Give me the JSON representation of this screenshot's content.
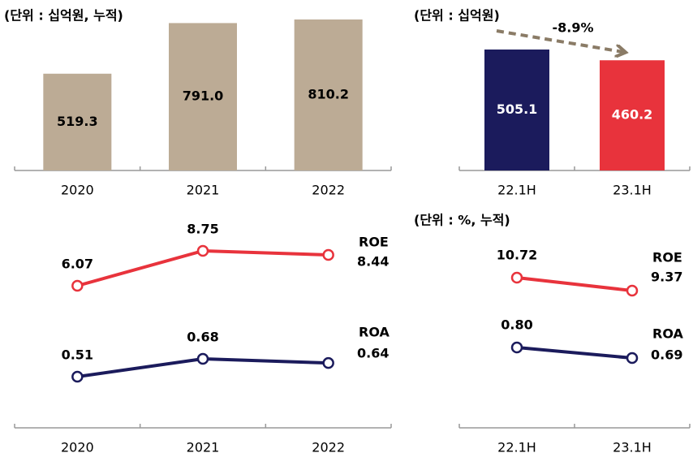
{
  "chart_data": [
    {
      "type": "bar",
      "title": "(단위 : 십억원, 누적)",
      "categories": [
        "2020",
        "2021",
        "2022"
      ],
      "values": [
        519.3,
        791.0,
        810.2
      ],
      "value_labels": [
        "519.3",
        "791.0",
        "810.2"
      ],
      "color": "#bcab95"
    },
    {
      "type": "bar",
      "title": "(단위 : 십억원)",
      "categories": [
        "22.1H",
        "23.1H"
      ],
      "values": [
        505.1,
        460.2
      ],
      "colors": [
        "#1b1b5c",
        "#e8333c"
      ],
      "annotation": "-8.9%"
    },
    {
      "type": "line",
      "categories": [
        "2020",
        "2021",
        "2022"
      ],
      "series": [
        {
          "name": "ROE",
          "color": "#e8333c",
          "values": [
            6.07,
            8.75,
            8.44
          ]
        },
        {
          "name": "ROA",
          "color": "#1b1b5c",
          "values": [
            0.51,
            0.68,
            0.64
          ]
        }
      ]
    },
    {
      "type": "line",
      "title": "(단위 : %, 누적)",
      "categories": [
        "22.1H",
        "23.1H"
      ],
      "series": [
        {
          "name": "ROE",
          "color": "#e8333c",
          "values": [
            10.72,
            9.37
          ]
        },
        {
          "name": "ROA",
          "color": "#1b1b5c",
          "values": [
            0.8,
            0.69
          ],
          "value_labels": [
            "0.80",
            "0.69"
          ]
        }
      ]
    }
  ]
}
